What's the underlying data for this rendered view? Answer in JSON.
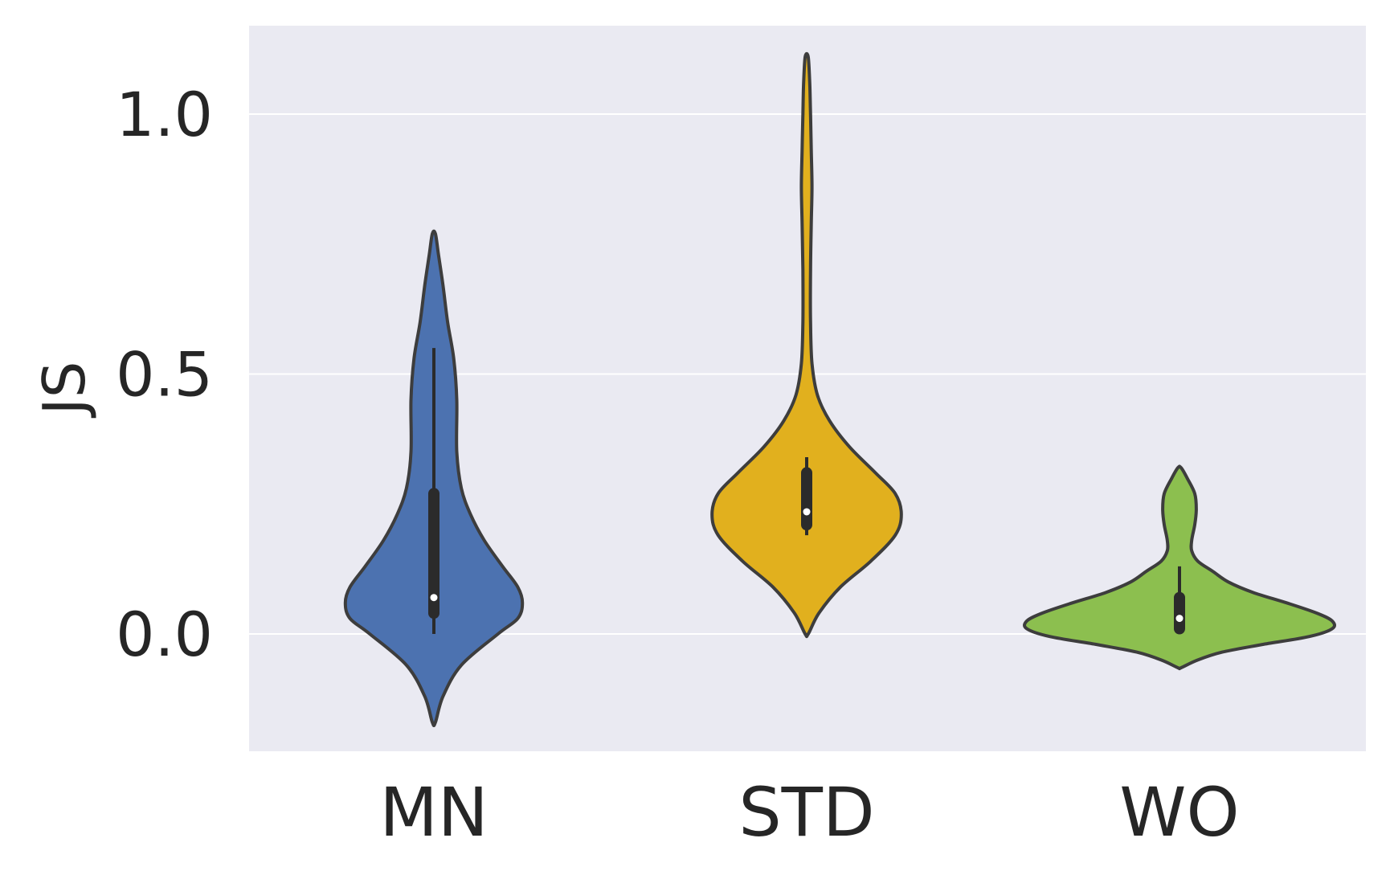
{
  "chart_data": {
    "type": "violin",
    "ylabel": "JS",
    "ylim": [
      -0.22,
      1.17
    ],
    "yticks": [
      0.0,
      0.5,
      1.0
    ],
    "ytick_labels": [
      "0.0",
      "0.5",
      "1.0"
    ],
    "grid": true,
    "colors": {
      "background": "#EAEAF2",
      "grid": "#FFFFFF",
      "outline": "#3D3D3D",
      "box": "#2B2B2B",
      "median": "#FFFFFF"
    },
    "categories": [
      "MN",
      "STD",
      "WO"
    ],
    "violins": [
      {
        "category": "MN",
        "color": "#4C72B0",
        "min": 0.0,
        "q1": 0.04,
        "median": 0.07,
        "q3": 0.27,
        "max": 0.55,
        "density": [
          [
            -0.17,
            0.01
          ],
          [
            -0.12,
            0.06
          ],
          [
            -0.06,
            0.18
          ],
          [
            0.0,
            0.42
          ],
          [
            0.03,
            0.55
          ],
          [
            0.06,
            0.58
          ],
          [
            0.09,
            0.55
          ],
          [
            0.13,
            0.45
          ],
          [
            0.18,
            0.33
          ],
          [
            0.23,
            0.24
          ],
          [
            0.28,
            0.18
          ],
          [
            0.35,
            0.15
          ],
          [
            0.45,
            0.15
          ],
          [
            0.53,
            0.13
          ],
          [
            0.6,
            0.09
          ],
          [
            0.67,
            0.06
          ],
          [
            0.73,
            0.03
          ],
          [
            0.77,
            0.01
          ]
        ]
      },
      {
        "category": "STD",
        "color": "#E1B01E",
        "min": 0.19,
        "q1": 0.21,
        "median": 0.235,
        "q3": 0.31,
        "max": 0.34,
        "density": [
          [
            0.0,
            0.01
          ],
          [
            0.04,
            0.08
          ],
          [
            0.09,
            0.22
          ],
          [
            0.14,
            0.42
          ],
          [
            0.19,
            0.58
          ],
          [
            0.23,
            0.62
          ],
          [
            0.27,
            0.58
          ],
          [
            0.31,
            0.45
          ],
          [
            0.36,
            0.28
          ],
          [
            0.41,
            0.15
          ],
          [
            0.46,
            0.07
          ],
          [
            0.52,
            0.035
          ],
          [
            0.6,
            0.025
          ],
          [
            0.7,
            0.025
          ],
          [
            0.79,
            0.03
          ],
          [
            0.86,
            0.035
          ],
          [
            0.93,
            0.03
          ],
          [
            1.0,
            0.025
          ],
          [
            1.06,
            0.02
          ],
          [
            1.11,
            0.01
          ]
        ]
      },
      {
        "category": "WO",
        "color": "#8CBF4F",
        "min": 0.0,
        "q1": 0.01,
        "median": 0.03,
        "q3": 0.07,
        "max": 0.13,
        "density": [
          [
            -0.065,
            0.01
          ],
          [
            -0.05,
            0.12
          ],
          [
            -0.035,
            0.28
          ],
          [
            -0.02,
            0.55
          ],
          [
            -0.005,
            0.85
          ],
          [
            0.01,
            1.0
          ],
          [
            0.025,
            1.0
          ],
          [
            0.04,
            0.9
          ],
          [
            0.06,
            0.7
          ],
          [
            0.08,
            0.48
          ],
          [
            0.1,
            0.32
          ],
          [
            0.12,
            0.22
          ],
          [
            0.14,
            0.12
          ],
          [
            0.16,
            0.08
          ],
          [
            0.18,
            0.08
          ],
          [
            0.21,
            0.1
          ],
          [
            0.24,
            0.11
          ],
          [
            0.27,
            0.1
          ],
          [
            0.3,
            0.05
          ],
          [
            0.32,
            0.01
          ]
        ]
      }
    ]
  }
}
